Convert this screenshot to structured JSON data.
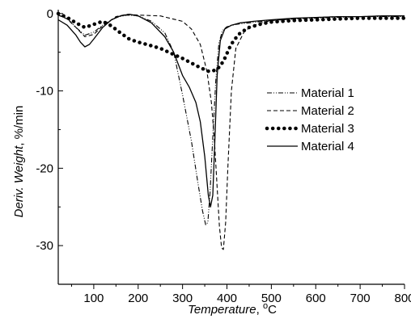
{
  "chart_data": {
    "type": "line",
    "xlabel": "Temperature",
    "xunit_prefix": ", ",
    "xunit_sup": "o",
    "xunit_letter": "C",
    "ylabel": "Deriv. Weight",
    "yunit": "%/min",
    "xlim": [
      20,
      800
    ],
    "ylim": [
      -35,
      0.5
    ],
    "x_ticks": [
      "100",
      "200",
      "300",
      "400",
      "500",
      "600",
      "700",
      "800"
    ],
    "y_ticks": [
      "0",
      "-10",
      "-20",
      "-30"
    ],
    "grid": false,
    "legend_position": "right",
    "series": [
      {
        "name": "Material 1",
        "style": "dash-dot-dot",
        "x": [
          20,
          40,
          60,
          80,
          100,
          120,
          150,
          175,
          200,
          230,
          260,
          280,
          300,
          320,
          335,
          345,
          352,
          357,
          362,
          368,
          375,
          382,
          390,
          400,
          420,
          450,
          500,
          550,
          600,
          650,
          700,
          750,
          800
        ],
        "y": [
          -0.2,
          -0.6,
          -1.8,
          -2.8,
          -2.4,
          -1.5,
          -0.5,
          -0.2,
          -0.3,
          -1.0,
          -2.5,
          -5.0,
          -10.5,
          -16.5,
          -22.0,
          -25.5,
          -27.3,
          -27.0,
          -23.0,
          -16.0,
          -8.5,
          -3.8,
          -2.2,
          -1.7,
          -1.4,
          -1.2,
          -0.9,
          -0.7,
          -0.6,
          -0.5,
          -0.4,
          -0.4,
          -0.4
        ]
      },
      {
        "name": "Material 2",
        "style": "dashed",
        "x": [
          20,
          40,
          60,
          80,
          100,
          120,
          150,
          175,
          200,
          250,
          300,
          320,
          340,
          355,
          365,
          372,
          378,
          383,
          388,
          392,
          397,
          402,
          410,
          420,
          440,
          470,
          500,
          550,
          600,
          650,
          700,
          750,
          800
        ],
        "y": [
          -0.2,
          -0.7,
          -1.8,
          -3.0,
          -2.7,
          -1.6,
          -0.4,
          -0.1,
          -0.2,
          -0.3,
          -1.0,
          -2.0,
          -4.0,
          -7.5,
          -11.5,
          -16.5,
          -22.5,
          -27.5,
          -30.3,
          -30.5,
          -27.0,
          -20.0,
          -10.0,
          -4.5,
          -2.2,
          -1.3,
          -0.9,
          -0.7,
          -0.5,
          -0.4,
          -0.4,
          -0.3,
          -0.3
        ]
      },
      {
        "name": "Material 3",
        "style": "dotted",
        "x": [
          20,
          40,
          60,
          80,
          100,
          120,
          140,
          160,
          180,
          200,
          220,
          250,
          280,
          300,
          320,
          340,
          360,
          375,
          385,
          395,
          405,
          415,
          430,
          450,
          480,
          500,
          550,
          600,
          650,
          700,
          750,
          800
        ],
        "y": [
          0.0,
          -0.5,
          -1.2,
          -1.8,
          -1.4,
          -1.0,
          -1.6,
          -2.5,
          -3.3,
          -3.7,
          -4.0,
          -4.5,
          -5.3,
          -5.8,
          -6.4,
          -7.0,
          -7.5,
          -7.3,
          -6.8,
          -5.8,
          -4.5,
          -3.5,
          -2.5,
          -1.8,
          -1.3,
          -1.1,
          -0.9,
          -0.8,
          -0.7,
          -0.6,
          -0.6,
          -0.6
        ]
      },
      {
        "name": "Material 4",
        "style": "solid",
        "x": [
          20,
          40,
          60,
          70,
          80,
          90,
          100,
          120,
          140,
          160,
          180,
          200,
          230,
          260,
          280,
          300,
          315,
          330,
          340,
          350,
          358,
          363,
          368,
          373,
          378,
          385,
          395,
          410,
          430,
          460,
          500,
          550,
          600,
          650,
          700,
          750,
          800
        ],
        "y": [
          -0.8,
          -1.5,
          -2.8,
          -3.7,
          -4.3,
          -4.0,
          -3.3,
          -1.8,
          -0.8,
          -0.3,
          -0.1,
          -0.3,
          -1.2,
          -3.0,
          -5.0,
          -8.0,
          -9.5,
          -11.5,
          -14.0,
          -18.5,
          -23.5,
          -25.0,
          -23.5,
          -16.0,
          -8.0,
          -3.5,
          -2.0,
          -1.5,
          -1.2,
          -1.0,
          -0.8,
          -0.6,
          -0.5,
          -0.4,
          -0.4,
          -0.3,
          -0.3
        ]
      }
    ]
  }
}
